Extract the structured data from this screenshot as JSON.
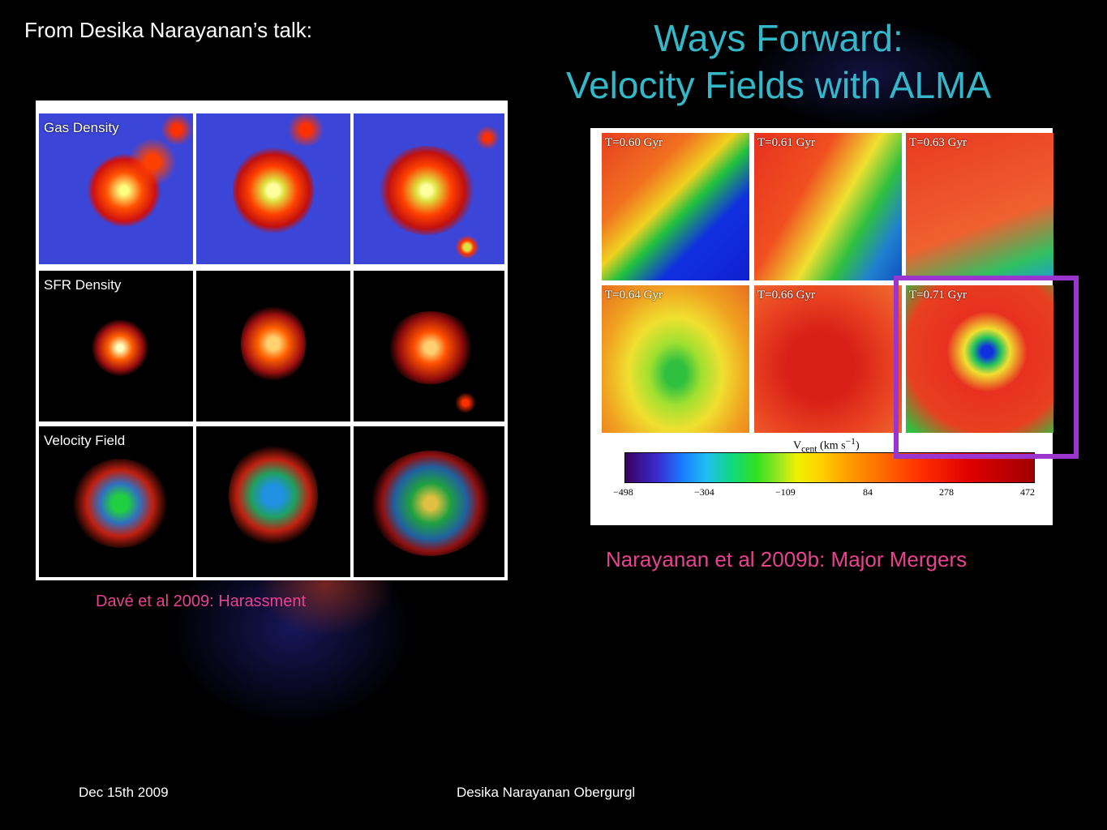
{
  "header": {
    "intro": "From Desika Narayanan’s talk:",
    "title_line1": "Ways Forward:",
    "title_line2": "Velocity Fields with ALMA"
  },
  "left_figure": {
    "row_labels": [
      "Gas Density",
      "SFR Density",
      "Velocity Field"
    ],
    "caption": "Davé et al 2009: Harassment"
  },
  "right_figure": {
    "panel_labels": [
      "T=0.60 Gyr",
      "T=0.61 Gyr",
      "T=0.63 Gyr",
      "T=0.64 Gyr",
      "T=0.66 Gyr",
      "T=0.71 Gyr"
    ],
    "colorbar_label": "V",
    "colorbar_label_sub": "cent",
    "colorbar_label_unit": " (km s",
    "colorbar_label_exp": "−1",
    "colorbar_label_end": ")",
    "colorbar_ticks": [
      "−498",
      "−304",
      "−109",
      "84",
      "278",
      "472"
    ],
    "caption": "Narayanan et al 2009b: Major Mergers",
    "highlight_color": "#9a35d0"
  },
  "footer": {
    "date": "Dec 15th  2009",
    "center": "Desika Narayanan   Obergurgl"
  },
  "colors": {
    "title": "#34b8c9",
    "caption": "#e8438f"
  }
}
